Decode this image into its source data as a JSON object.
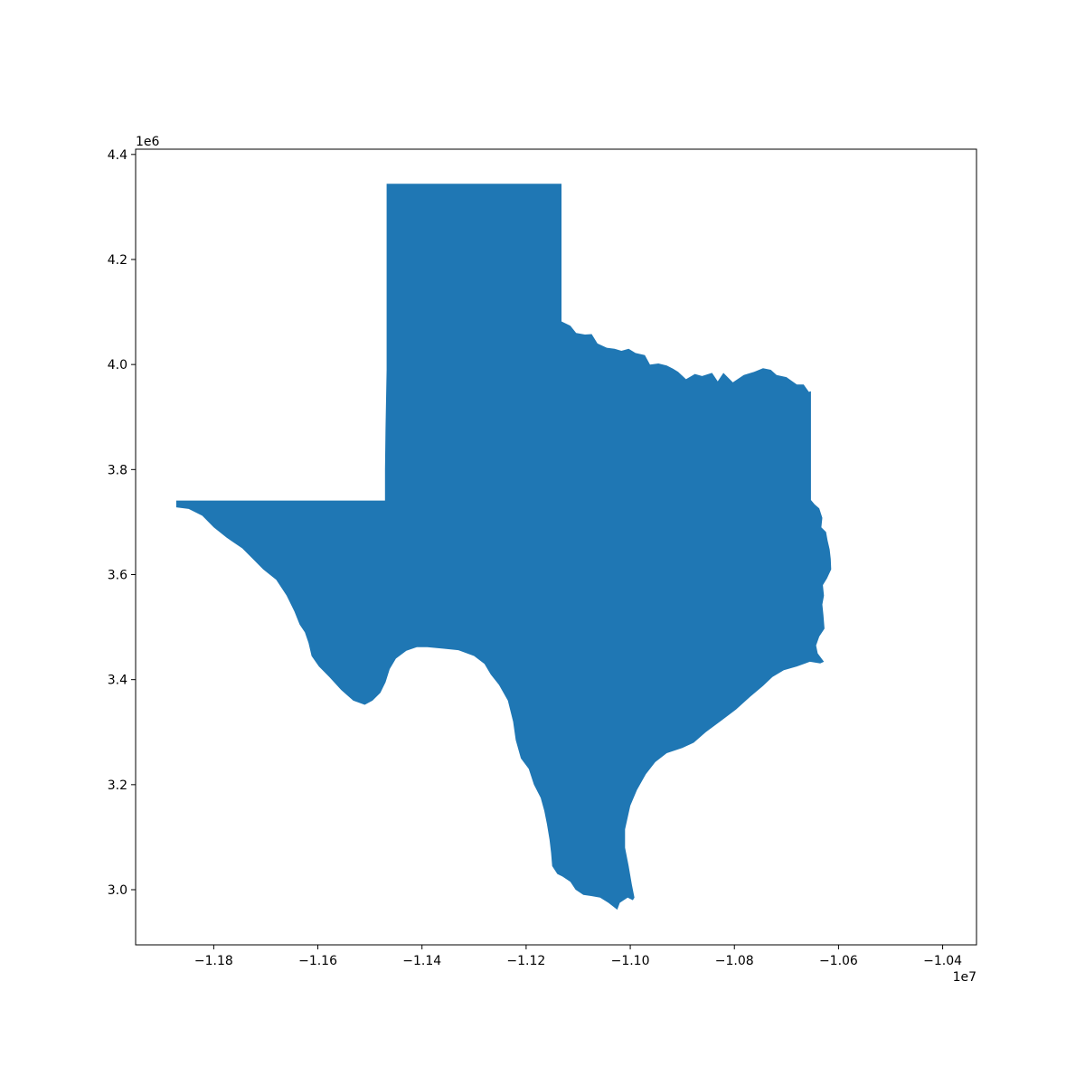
{
  "chart_data": {
    "type": "map",
    "region": "Texas",
    "fill_color": "#1f77b4",
    "background": "#ffffff",
    "xlim": [
      -11950000,
      -10335000
    ],
    "ylim": [
      2895000,
      4410000
    ],
    "xticks": [
      -11800000,
      -11600000,
      -11400000,
      -11200000,
      -11000000,
      -10800000,
      -10600000,
      -10400000
    ],
    "xtick_labels": [
      "−1.18",
      "−1.16",
      "−1.14",
      "−1.12",
      "−1.10",
      "−1.08",
      "−1.06",
      "−1.04"
    ],
    "x_offset_label": "1e7",
    "yticks": [
      3000000,
      3200000,
      3400000,
      3600000,
      3800000,
      4000000,
      4200000,
      4400000
    ],
    "ytick_labels": [
      "3.0",
      "3.2",
      "3.4",
      "3.6",
      "3.8",
      "4.0",
      "4.2",
      "4.4"
    ],
    "y_offset_label": "1e6",
    "grid": false,
    "outline": [
      [
        -11872000,
        3741000
      ],
      [
        -11471000,
        3741000
      ],
      [
        -11471000,
        3800000
      ],
      [
        -11470000,
        3880000
      ],
      [
        -11468000,
        3990000
      ],
      [
        -11468000,
        4344000
      ],
      [
        -11132000,
        4344000
      ],
      [
        -11132000,
        4082000
      ],
      [
        -11115000,
        4074000
      ],
      [
        -11104000,
        4060000
      ],
      [
        -11087000,
        4057000
      ],
      [
        -11074000,
        4058000
      ],
      [
        -11063000,
        4040000
      ],
      [
        -11045000,
        4032000
      ],
      [
        -11030000,
        4030000
      ],
      [
        -11017000,
        4026000
      ],
      [
        -11003000,
        4030000
      ],
      [
        -10990000,
        4022000
      ],
      [
        -10972000,
        4018000
      ],
      [
        -10962000,
        4000000
      ],
      [
        -10946000,
        4002000
      ],
      [
        -10930000,
        3998000
      ],
      [
        -10918000,
        3992000
      ],
      [
        -10908000,
        3986000
      ],
      [
        -10893000,
        3972000
      ],
      [
        -10876000,
        3982000
      ],
      [
        -10862000,
        3978000
      ],
      [
        -10843000,
        3984000
      ],
      [
        -10832000,
        3968000
      ],
      [
        -10821000,
        3984000
      ],
      [
        -10803000,
        3966000
      ],
      [
        -10782000,
        3980000
      ],
      [
        -10762000,
        3986000
      ],
      [
        -10745000,
        3993000
      ],
      [
        -10730000,
        3990000
      ],
      [
        -10719000,
        3980000
      ],
      [
        -10700000,
        3976000
      ],
      [
        -10680000,
        3962000
      ],
      [
        -10667000,
        3962000
      ],
      [
        -10657000,
        3948000
      ],
      [
        -10653000,
        3949000
      ],
      [
        -10653000,
        3742000
      ],
      [
        -10646000,
        3734000
      ],
      [
        -10637000,
        3726000
      ],
      [
        -10631000,
        3708000
      ],
      [
        -10633000,
        3690000
      ],
      [
        -10624000,
        3681000
      ],
      [
        -10621000,
        3665000
      ],
      [
        -10617000,
        3648000
      ],
      [
        -10615000,
        3630000
      ],
      [
        -10614000,
        3610000
      ],
      [
        -10622000,
        3593000
      ],
      [
        -10630000,
        3580000
      ],
      [
        -10628000,
        3560000
      ],
      [
        -10631000,
        3543000
      ],
      [
        -10629000,
        3523000
      ],
      [
        -10627000,
        3497000
      ],
      [
        -10637000,
        3482000
      ],
      [
        -10643000,
        3465000
      ],
      [
        -10640000,
        3450000
      ],
      [
        -10628000,
        3434000
      ],
      [
        -10635000,
        3431000
      ],
      [
        -10655000,
        3434000
      ],
      [
        -10680000,
        3425000
      ],
      [
        -10705000,
        3418000
      ],
      [
        -10727000,
        3405000
      ],
      [
        -10745000,
        3388000
      ],
      [
        -10770000,
        3367000
      ],
      [
        -10797000,
        3343000
      ],
      [
        -10825000,
        3322000
      ],
      [
        -10855000,
        3300000
      ],
      [
        -10878000,
        3280000
      ],
      [
        -10900000,
        3270000
      ],
      [
        -10930000,
        3260000
      ],
      [
        -10952000,
        3243000
      ],
      [
        -10970000,
        3220000
      ],
      [
        -10987000,
        3190000
      ],
      [
        -11000000,
        3160000
      ],
      [
        -11010000,
        3115000
      ],
      [
        -11010000,
        3080000
      ],
      [
        -11003000,
        3045000
      ],
      [
        -10997000,
        3010000
      ],
      [
        -10992000,
        2985000
      ],
      [
        -10995000,
        2980000
      ],
      [
        -11005000,
        2985000
      ],
      [
        -11020000,
        2975000
      ],
      [
        -11025000,
        2962000
      ],
      [
        -11042000,
        2975000
      ],
      [
        -11058000,
        2985000
      ],
      [
        -11075000,
        2988000
      ],
      [
        -11090000,
        2990000
      ],
      [
        -11105000,
        3000000
      ],
      [
        -11115000,
        3015000
      ],
      [
        -11130000,
        3025000
      ],
      [
        -11140000,
        3030000
      ],
      [
        -11150000,
        3045000
      ],
      [
        -11152000,
        3070000
      ],
      [
        -11155000,
        3095000
      ],
      [
        -11160000,
        3125000
      ],
      [
        -11165000,
        3150000
      ],
      [
        -11172000,
        3175000
      ],
      [
        -11185000,
        3200000
      ],
      [
        -11195000,
        3230000
      ],
      [
        -11210000,
        3250000
      ],
      [
        -11220000,
        3285000
      ],
      [
        -11225000,
        3320000
      ],
      [
        -11235000,
        3360000
      ],
      [
        -11252000,
        3390000
      ],
      [
        -11268000,
        3410000
      ],
      [
        -11280000,
        3430000
      ],
      [
        -11300000,
        3445000
      ],
      [
        -11330000,
        3456000
      ],
      [
        -11360000,
        3459000
      ],
      [
        -11390000,
        3462000
      ],
      [
        -11410000,
        3462000
      ],
      [
        -11430000,
        3455000
      ],
      [
        -11450000,
        3440000
      ],
      [
        -11462000,
        3420000
      ],
      [
        -11470000,
        3395000
      ],
      [
        -11480000,
        3375000
      ],
      [
        -11495000,
        3360000
      ],
      [
        -11510000,
        3352000
      ],
      [
        -11532000,
        3360000
      ],
      [
        -11555000,
        3380000
      ],
      [
        -11578000,
        3405000
      ],
      [
        -11598000,
        3425000
      ],
      [
        -11612000,
        3445000
      ],
      [
        -11618000,
        3470000
      ],
      [
        -11625000,
        3490000
      ],
      [
        -11635000,
        3505000
      ],
      [
        -11645000,
        3530000
      ],
      [
        -11660000,
        3560000
      ],
      [
        -11680000,
        3590000
      ],
      [
        -11705000,
        3610000
      ],
      [
        -11725000,
        3630000
      ],
      [
        -11745000,
        3650000
      ],
      [
        -11775000,
        3670000
      ],
      [
        -11800000,
        3690000
      ],
      [
        -11822000,
        3712000
      ],
      [
        -11848000,
        3725000
      ],
      [
        -11872000,
        3728000
      ]
    ]
  }
}
